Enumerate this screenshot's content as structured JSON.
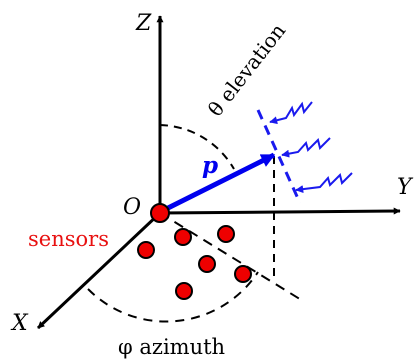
{
  "labels": {
    "z_axis": "Z",
    "x_axis": "X",
    "y_axis": "Y",
    "origin": "O",
    "sensors": "sensors",
    "elevation": "θ elevation",
    "azimuth": "φ azimuth",
    "vector": "p"
  },
  "colors": {
    "axis": "#000000",
    "sensor_fill": "#ee0000",
    "sensor_stroke": "#000000",
    "sensors_label": "#e81010",
    "vector": "#0000ee",
    "wavefront": "#1a1aee"
  },
  "sensor_count": 7
}
